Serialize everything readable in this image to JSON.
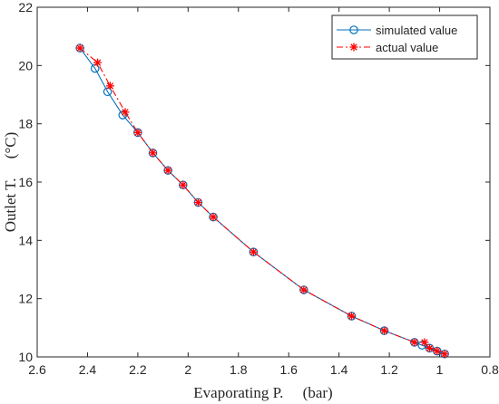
{
  "chart_data": {
    "type": "line",
    "xlabel": "Evaporating P.     (bar)",
    "ylabel": "Outlet T.     (°C)",
    "xlim": [
      2.6,
      0.8
    ],
    "x_reversed": true,
    "ylim": [
      10,
      22
    ],
    "xticks": [
      "2.6",
      "2.4",
      "2.2",
      "2",
      "1.8",
      "1.6",
      "1.4",
      "1.2",
      "1",
      "0.8"
    ],
    "yticks": [
      "10",
      "12",
      "14",
      "16",
      "18",
      "20",
      "22"
    ],
    "grid": false,
    "legend_position": "top-right",
    "series": [
      {
        "name": "simulated value",
        "color": "#0072BD",
        "marker": "circle",
        "line_style": "solid",
        "x": [
          2.43,
          2.37,
          2.32,
          2.26,
          2.2,
          2.14,
          2.08,
          2.02,
          1.96,
          1.9,
          1.74,
          1.54,
          1.35,
          1.22,
          1.1,
          1.07,
          1.04,
          1.01,
          0.98
        ],
        "y": [
          20.6,
          19.9,
          19.1,
          18.3,
          17.7,
          17.0,
          16.4,
          15.9,
          15.3,
          14.8,
          13.6,
          12.3,
          11.4,
          10.9,
          10.5,
          10.4,
          10.3,
          10.2,
          10.1
        ]
      },
      {
        "name": "actual value",
        "color": "#FF0000",
        "marker": "star",
        "line_style": "dash-dot",
        "x": [
          2.43,
          2.36,
          2.31,
          2.25,
          2.2,
          2.14,
          2.08,
          2.02,
          1.96,
          1.9,
          1.74,
          1.54,
          1.35,
          1.22,
          1.1,
          1.06,
          1.04,
          1.01,
          0.98
        ],
        "y": [
          20.6,
          20.1,
          19.3,
          18.4,
          17.7,
          17.0,
          16.4,
          15.9,
          15.3,
          14.8,
          13.6,
          12.3,
          11.4,
          10.9,
          10.5,
          10.5,
          10.3,
          10.2,
          10.1
        ]
      }
    ]
  }
}
